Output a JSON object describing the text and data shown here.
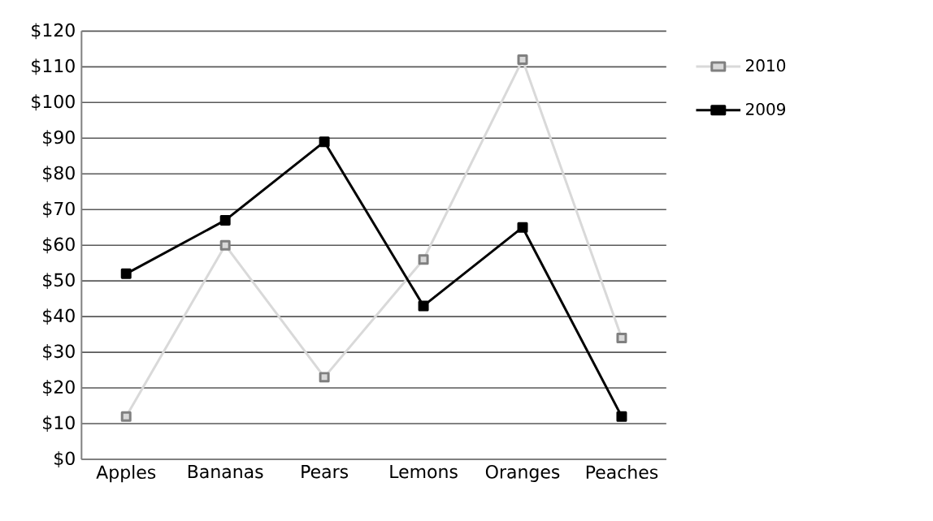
{
  "chart_data": {
    "type": "line",
    "categories": [
      "Apples",
      "Bananas",
      "Pears",
      "Lemons",
      "Oranges",
      "Peaches"
    ],
    "series": [
      {
        "name": "2010",
        "color": "#d9d9d9",
        "values": [
          12,
          60,
          23,
          56,
          112,
          34
        ]
      },
      {
        "name": "2009",
        "color": "#000000",
        "values": [
          52,
          67,
          89,
          43,
          65,
          12
        ]
      }
    ],
    "ylim": [
      0,
      120
    ],
    "yticks": [
      {
        "value": 0,
        "label": "$0"
      },
      {
        "value": 10,
        "label": "$10"
      },
      {
        "value": 20,
        "label": "$20"
      },
      {
        "value": 30,
        "label": "$30"
      },
      {
        "value": 40,
        "label": "$40"
      },
      {
        "value": 50,
        "label": "$50"
      },
      {
        "value": 60,
        "label": "$60"
      },
      {
        "value": 70,
        "label": "$70"
      },
      {
        "value": 80,
        "label": "$80"
      },
      {
        "value": 90,
        "label": "$90"
      },
      {
        "value": 100,
        "label": "$100"
      },
      {
        "value": 110,
        "label": "$110"
      },
      {
        "value": 120,
        "label": "$120"
      }
    ],
    "grid": "y",
    "legend": "right",
    "marker": "square",
    "line_style": "solid"
  }
}
